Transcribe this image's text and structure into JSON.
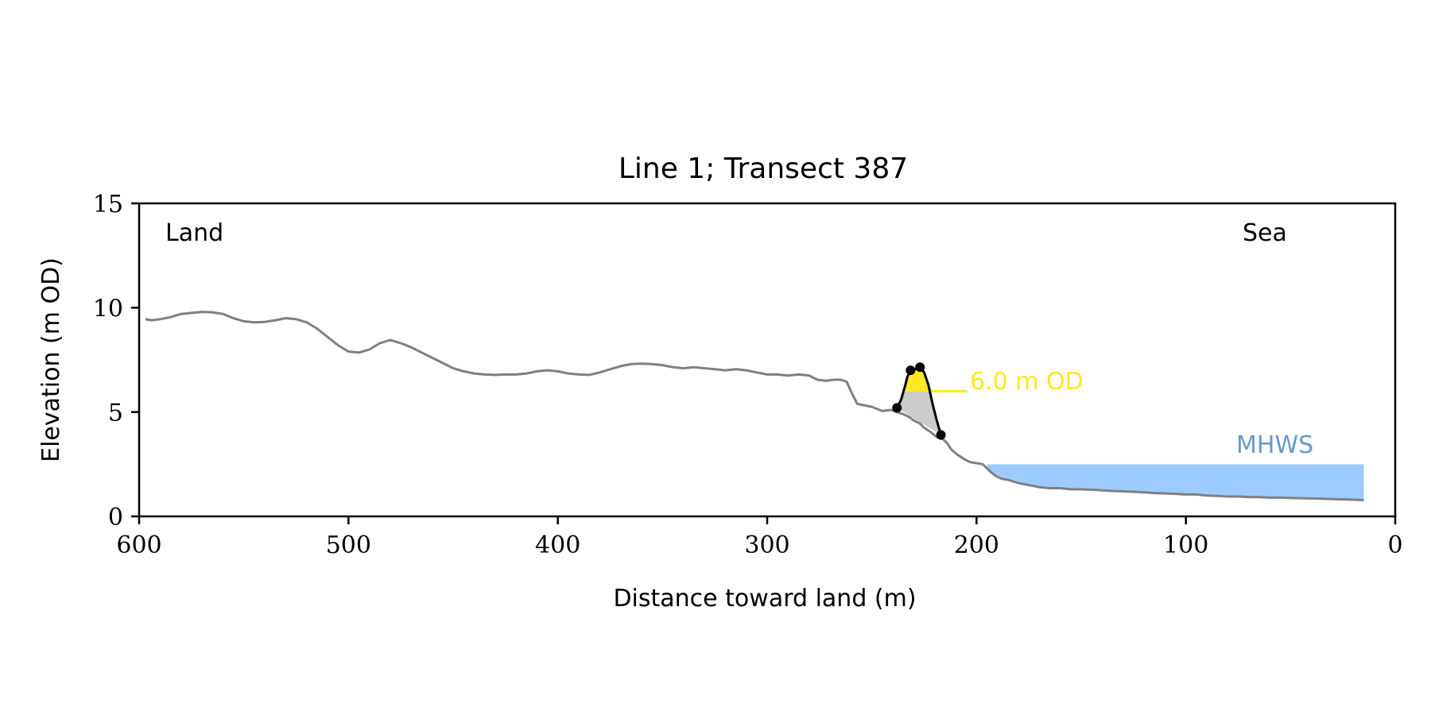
{
  "chart_data": {
    "type": "line",
    "title": "Line 1; Transect 387",
    "xlabel": "Distance toward land (m)",
    "ylabel": "Elevation (m OD)",
    "xlim": [
      600,
      0
    ],
    "ylim": [
      0,
      15
    ],
    "x_ticks": [
      600,
      500,
      400,
      300,
      200,
      100,
      0
    ],
    "y_ticks": [
      0,
      5,
      10,
      15
    ],
    "grid": false,
    "annotations": {
      "land": "Land",
      "sea": "Sea",
      "mhws_label": "MHWS",
      "mhws_level": 2.5,
      "mhws_x_range": [
        195,
        15
      ],
      "od_label": "6.0 m OD",
      "od_level": 6.0
    },
    "colors": {
      "profile": "#808080",
      "dune": "#000000",
      "dune_fill_above": "#FFE81F",
      "dune_fill_below": "#CCCCCC",
      "mhws": "#9ECBFF",
      "mhws_text": "#6699CC",
      "od_text": "#FFE81F"
    },
    "series": [
      {
        "x": [
          597,
          594,
          590,
          585,
          580,
          575,
          570,
          565,
          560,
          555,
          550,
          545,
          540,
          535,
          530,
          525,
          520,
          515,
          510,
          505,
          500,
          495,
          490,
          485,
          480,
          475,
          470,
          465,
          460,
          455,
          450,
          445,
          440,
          435,
          430,
          425,
          420,
          415,
          410,
          405,
          400,
          395,
          390,
          385,
          380,
          375,
          370,
          365,
          360,
          355,
          350,
          345,
          340,
          335,
          330,
          325,
          320,
          315,
          310,
          305,
          300,
          295,
          290,
          285,
          280,
          276,
          272,
          268,
          265,
          262,
          260,
          257,
          255,
          250,
          245,
          241,
          238,
          235,
          232,
          230,
          227,
          225,
          222,
          219,
          216,
          214,
          212,
          209,
          206,
          203,
          200,
          197,
          194,
          191,
          188,
          185,
          180,
          175,
          170,
          165,
          160,
          155,
          150,
          145,
          140,
          135,
          130,
          125,
          120,
          115,
          110,
          105,
          100,
          95,
          90,
          85,
          80,
          75,
          70,
          65,
          60,
          55,
          50,
          45,
          40,
          35,
          30,
          25,
          20,
          15
        ],
        "y": [
          9.45,
          9.4,
          9.45,
          9.55,
          9.7,
          9.75,
          9.8,
          9.78,
          9.7,
          9.5,
          9.35,
          9.3,
          9.32,
          9.4,
          9.5,
          9.45,
          9.3,
          9.0,
          8.6,
          8.2,
          7.9,
          7.85,
          8.0,
          8.3,
          8.45,
          8.3,
          8.1,
          7.85,
          7.6,
          7.35,
          7.1,
          6.95,
          6.85,
          6.8,
          6.78,
          6.8,
          6.8,
          6.85,
          6.95,
          7.0,
          6.95,
          6.85,
          6.8,
          6.78,
          6.9,
          7.05,
          7.2,
          7.3,
          7.32,
          7.3,
          7.25,
          7.15,
          7.1,
          7.15,
          7.1,
          7.05,
          7.0,
          7.05,
          7.0,
          6.9,
          6.8,
          6.8,
          6.75,
          6.8,
          6.75,
          6.55,
          6.5,
          6.55,
          6.55,
          6.45,
          6.0,
          5.4,
          5.35,
          5.25,
          5.05,
          5.1,
          5.0,
          4.9,
          4.75,
          4.6,
          4.45,
          4.25,
          4.05,
          3.8,
          3.7,
          3.5,
          3.2,
          2.95,
          2.75,
          2.6,
          2.55,
          2.5,
          2.2,
          1.95,
          1.8,
          1.75,
          1.6,
          1.5,
          1.4,
          1.35,
          1.35,
          1.3,
          1.3,
          1.28,
          1.25,
          1.22,
          1.2,
          1.18,
          1.15,
          1.12,
          1.1,
          1.08,
          1.05,
          1.05,
          1.0,
          0.98,
          0.95,
          0.95,
          0.93,
          0.92,
          0.9,
          0.9,
          0.88,
          0.87,
          0.86,
          0.85,
          0.83,
          0.82,
          0.8,
          0.78
        ]
      },
      {
        "x": [
          238,
          236,
          234,
          233,
          231.5,
          230,
          228,
          227,
          225,
          223,
          221,
          219,
          217
        ],
        "y": [
          5.2,
          5.6,
          6.3,
          6.7,
          7.0,
          7.05,
          7.1,
          7.15,
          6.9,
          6.3,
          5.4,
          4.6,
          3.9
        ]
      }
    ],
    "markers": [
      {
        "x": 238,
        "y": 5.2
      },
      {
        "x": 231.5,
        "y": 7.0
      },
      {
        "x": 227,
        "y": 7.15
      },
      {
        "x": 217,
        "y": 3.9
      }
    ]
  }
}
